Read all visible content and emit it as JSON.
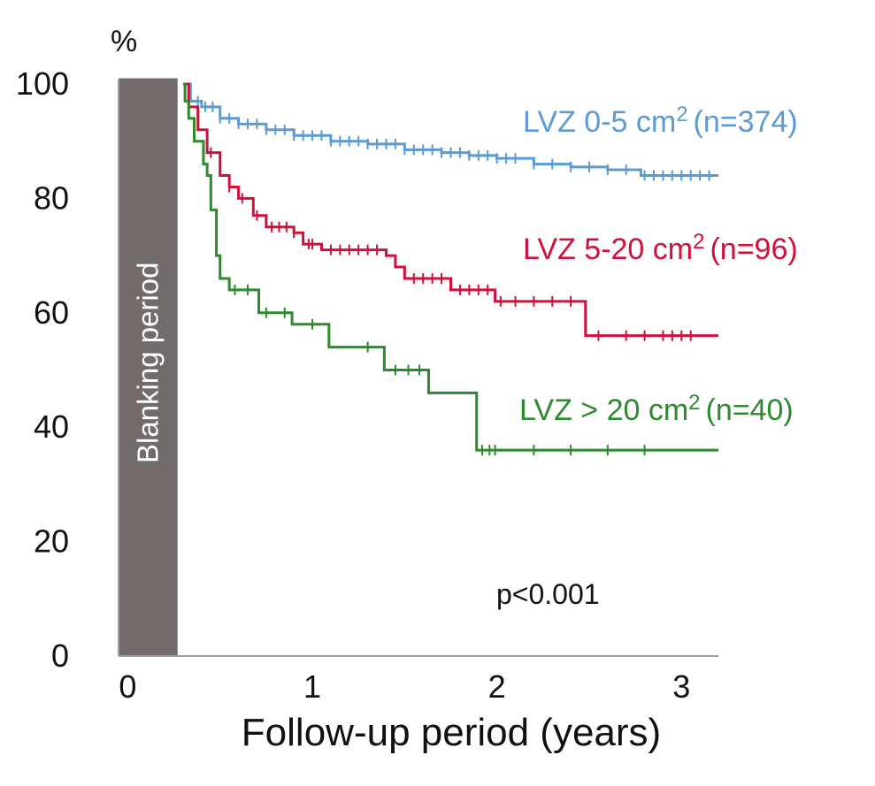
{
  "chart_data": {
    "type": "line",
    "subtype": "kaplan-meier",
    "title": "",
    "xlabel": "Follow-up period (years)",
    "ylabel": "",
    "y_unit_label": "%",
    "xlim": [
      -0.05,
      3.2
    ],
    "ylim": [
      0,
      100
    ],
    "x_ticks": [
      "0",
      "1",
      "2",
      "3"
    ],
    "y_ticks": [
      "0",
      "20",
      "40",
      "60",
      "80",
      "100"
    ],
    "grid": false,
    "band": {
      "label": "Blanking period",
      "x_start": -0.05,
      "x_end": 0.27,
      "y_top": 101,
      "color": "#716c6b"
    },
    "annotation": "p<0.001",
    "series": [
      {
        "label_main": "LVZ 0-5 cm",
        "label_sup": "2",
        "label_n": "(n=374)",
        "color": "#5b9bd5",
        "points": [
          [
            0.3,
            100
          ],
          [
            0.34,
            97
          ],
          [
            0.4,
            96
          ],
          [
            0.5,
            94
          ],
          [
            0.6,
            93
          ],
          [
            0.75,
            92
          ],
          [
            0.9,
            91
          ],
          [
            1.1,
            90
          ],
          [
            1.3,
            89.5
          ],
          [
            1.5,
            88.5
          ],
          [
            1.7,
            88
          ],
          [
            1.85,
            87.5
          ],
          [
            2.0,
            87
          ],
          [
            2.2,
            86
          ],
          [
            2.4,
            85.5
          ],
          [
            2.6,
            85
          ],
          [
            2.78,
            84
          ],
          [
            3.2,
            84
          ]
        ],
        "censor_x": [
          0.38,
          0.42,
          0.46,
          0.5,
          0.55,
          0.6,
          0.65,
          0.7,
          0.75,
          0.8,
          0.85,
          0.9,
          0.95,
          1.0,
          1.05,
          1.1,
          1.15,
          1.2,
          1.25,
          1.3,
          1.35,
          1.4,
          1.45,
          1.5,
          1.55,
          1.6,
          1.65,
          1.7,
          1.75,
          1.8,
          1.85,
          1.9,
          1.95,
          2.0,
          2.05,
          2.1,
          2.2,
          2.3,
          2.4,
          2.5,
          2.6,
          2.7,
          2.8,
          2.85,
          2.9,
          2.95,
          3.0,
          3.05,
          3.1,
          3.15
        ]
      },
      {
        "label_main": "LVZ 5-20 cm",
        "label_sup": "2",
        "label_n": "(n=96)",
        "color": "#d0103a",
        "points": [
          [
            0.3,
            100
          ],
          [
            0.33,
            96
          ],
          [
            0.38,
            92
          ],
          [
            0.43,
            88
          ],
          [
            0.5,
            84
          ],
          [
            0.55,
            82
          ],
          [
            0.6,
            80
          ],
          [
            0.68,
            77
          ],
          [
            0.75,
            75
          ],
          [
            0.9,
            74
          ],
          [
            0.95,
            72
          ],
          [
            1.05,
            71
          ],
          [
            1.4,
            70
          ],
          [
            1.45,
            68
          ],
          [
            1.5,
            66
          ],
          [
            1.75,
            64
          ],
          [
            1.99,
            62
          ],
          [
            2.45,
            62
          ],
          [
            2.48,
            56
          ],
          [
            3.2,
            56
          ]
        ],
        "censor_x": [
          0.45,
          0.55,
          0.62,
          0.7,
          0.78,
          0.82,
          0.86,
          0.9,
          0.98,
          1.0,
          1.1,
          1.15,
          1.2,
          1.25,
          1.3,
          1.35,
          1.55,
          1.6,
          1.65,
          1.7,
          1.8,
          1.85,
          1.9,
          1.95,
          2.02,
          2.1,
          2.2,
          2.3,
          2.4,
          2.55,
          2.7,
          2.8,
          2.9,
          2.95,
          3.0,
          3.05
        ]
      },
      {
        "label_main": "LVZ > 20 cm",
        "label_sup": "2",
        "label_n": "(n=40)",
        "color": "#2d8a2d",
        "points": [
          [
            0.3,
            100
          ],
          [
            0.31,
            97
          ],
          [
            0.33,
            94
          ],
          [
            0.36,
            90
          ],
          [
            0.41,
            86
          ],
          [
            0.43,
            84
          ],
          [
            0.45,
            78
          ],
          [
            0.48,
            70
          ],
          [
            0.5,
            66
          ],
          [
            0.55,
            64
          ],
          [
            0.71,
            60
          ],
          [
            0.89,
            58
          ],
          [
            1.09,
            54
          ],
          [
            1.39,
            50
          ],
          [
            1.63,
            46
          ],
          [
            1.89,
            36
          ],
          [
            3.2,
            36
          ]
        ],
        "censor_x": [
          0.58,
          0.65,
          0.75,
          0.85,
          1.0,
          1.3,
          1.45,
          1.52,
          1.58,
          1.92,
          1.96,
          1.99,
          2.2,
          2.4,
          2.6,
          2.8
        ]
      }
    ]
  }
}
